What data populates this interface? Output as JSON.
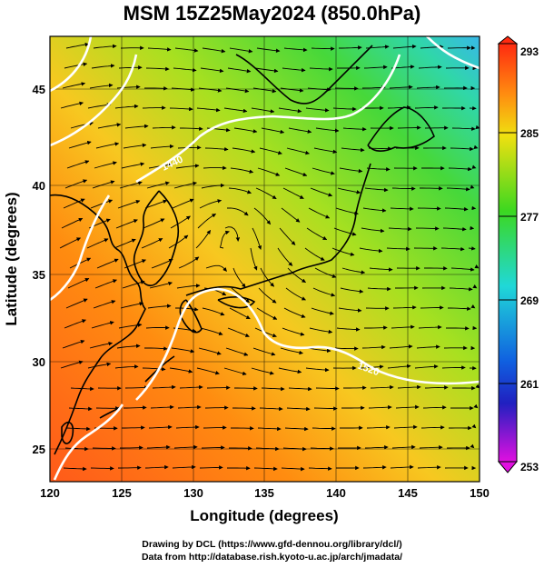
{
  "title": "MSM 15Z25May2024 (850.0hPa)",
  "xlabel": "Longitude (degrees)",
  "ylabel": "Latitude  (degrees)",
  "x_ticks": [
    "120",
    "125",
    "130",
    "135",
    "140",
    "145",
    "150"
  ],
  "y_ticks": [
    "25",
    "30",
    "35",
    "40",
    "45"
  ],
  "x_range": [
    120,
    150
  ],
  "y_range": [
    22.6,
    47.6
  ],
  "colorbar": {
    "ticks": [
      "293",
      "285",
      "277",
      "269",
      "261",
      "253"
    ],
    "range": [
      253,
      293
    ]
  },
  "contours": [
    {
      "label": "1440",
      "value": 1440
    },
    {
      "label": "1520",
      "value": 1520
    }
  ],
  "credits": [
    "Drawing by DCL (https://www.gfd-dennou.org/library/dcl/)",
    "Data from http://database.rish.kyoto-u.ac.jp/arch/jmadata/"
  ],
  "colors": {
    "land_outline": "#000000",
    "contour": "#ffffff"
  }
}
